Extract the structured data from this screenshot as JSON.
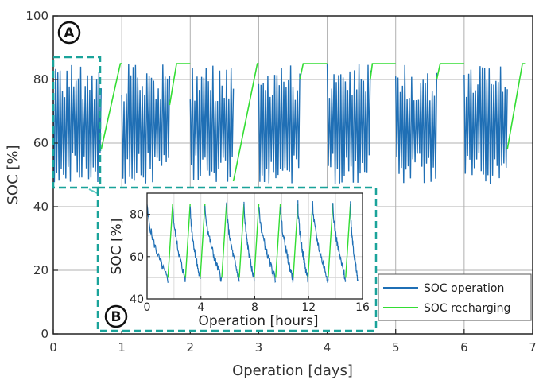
{
  "chart_data": [
    {
      "type": "line",
      "panel": "main",
      "xlabel": "Operation [days]",
      "ylabel": "SOC [%]",
      "xlim": [
        0,
        7
      ],
      "ylim": [
        0,
        100
      ],
      "xticks": [
        "0",
        "1",
        "2",
        "3",
        "4",
        "5",
        "6",
        "7"
      ],
      "yticks": [
        "0",
        "20",
        "40",
        "60",
        "80",
        "100"
      ],
      "grid": true,
      "legend_position": "bottom-right",
      "series": [
        {
          "name": "SOC operation",
          "color": "#1f6fb5",
          "segments": [
            [
              0.0,
              0.7
            ],
            [
              1.0,
              1.7
            ],
            [
              2.0,
              2.63
            ],
            [
              3.0,
              3.6
            ],
            [
              4.0,
              4.63
            ],
            [
              5.0,
              5.6
            ],
            [
              6.0,
              6.63
            ]
          ],
          "range": [
            47,
            85
          ]
        },
        {
          "name": "SOC recharging",
          "color": "#33dd33",
          "points": [
            [
              [
                0.7,
                58
              ],
              [
                0.98,
                85
              ],
              [
                1.0,
                85
              ]
            ],
            [
              [
                1.7,
                72
              ],
              [
                1.8,
                85
              ],
              [
                2.0,
                85
              ]
            ],
            [
              [
                2.63,
                48
              ],
              [
                2.98,
                85
              ],
              [
                3.0,
                85
              ]
            ],
            [
              [
                3.6,
                80
              ],
              [
                3.65,
                85
              ],
              [
                4.0,
                85
              ]
            ],
            [
              [
                4.63,
                80
              ],
              [
                4.66,
                85
              ],
              [
                5.0,
                85
              ]
            ],
            [
              [
                5.6,
                80
              ],
              [
                5.65,
                85
              ],
              [
                6.0,
                85
              ]
            ],
            [
              [
                6.63,
                58
              ],
              [
                6.85,
                85
              ],
              [
                6.9,
                85
              ]
            ]
          ]
        }
      ],
      "annotations": [
        {
          "label": "A"
        },
        {
          "label": "B"
        }
      ]
    },
    {
      "type": "line",
      "panel": "inset",
      "xlabel": "Operation [hours]",
      "ylabel": "SOC [%]",
      "xlim": [
        0,
        16
      ],
      "ylim": [
        40,
        90
      ],
      "xticks": [
        "0",
        "4",
        "8",
        "12",
        "16"
      ],
      "yticks": [
        "40",
        "60",
        "80"
      ],
      "grid": true,
      "series": [
        {
          "name": "SOC operation",
          "color": "#1f6fb5",
          "cycle_peaks_hours": [
            0,
            1.9,
            3.2,
            4.3,
            5.9,
            7.2,
            8.3,
            9.9,
            11.2,
            12.3,
            13.8,
            15.1
          ],
          "range": [
            47,
            85
          ]
        },
        {
          "name": "SOC recharging",
          "color": "#33dd33"
        }
      ]
    }
  ],
  "legend": {
    "items": [
      {
        "label": "SOC operation",
        "color": "#1f6fb5"
      },
      {
        "label": "SOC recharging",
        "color": "#33dd33"
      }
    ]
  },
  "colors": {
    "operation": "#1f6fb5",
    "recharging": "#33dd33",
    "highlight": "#1aa39a",
    "grid": "#b0b0b0",
    "axis": "#222222"
  }
}
